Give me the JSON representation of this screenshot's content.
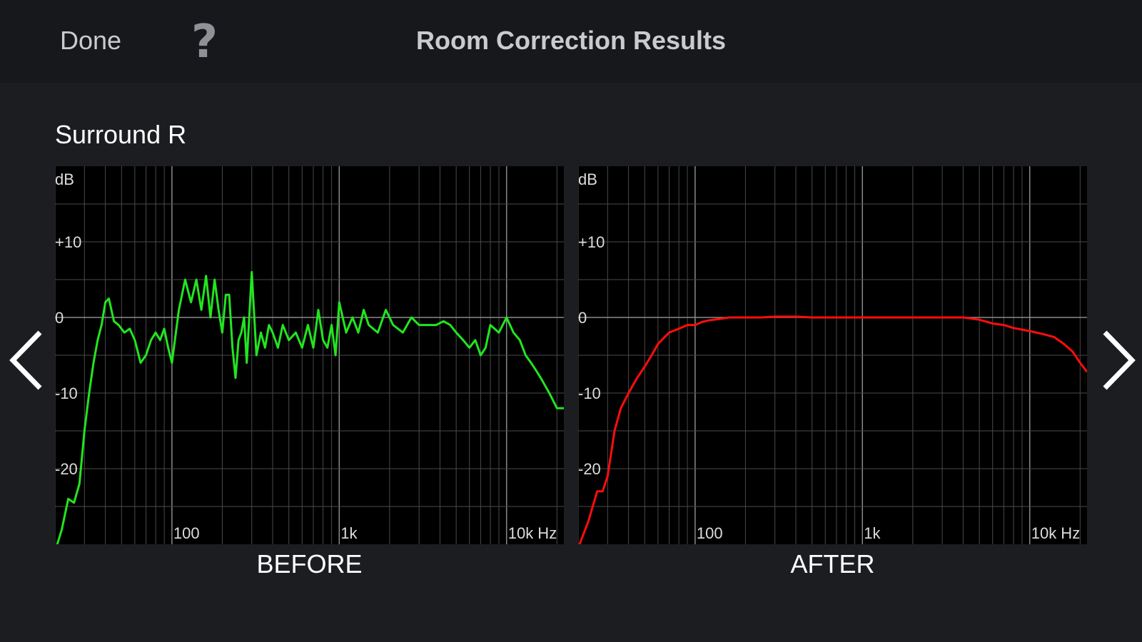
{
  "header": {
    "done_label": "Done",
    "help_label": "?",
    "title": "Room Correction Results"
  },
  "channel_name": "Surround R",
  "nav": {
    "prev_icon": "chevron-left-icon",
    "next_icon": "chevron-right-icon"
  },
  "chart_data": [
    {
      "type": "line",
      "caption": "BEFORE",
      "ylabel": "dB",
      "xscale": "log",
      "xlim": [
        20,
        22000
      ],
      "ylim": [
        -30,
        20
      ],
      "x_ticks": [
        {
          "value": 100,
          "label": "100"
        },
        {
          "value": 1000,
          "label": "1k"
        },
        {
          "value": 10000,
          "label": "10k Hz"
        }
      ],
      "y_ticks": [
        {
          "value": 10,
          "label": "+10"
        },
        {
          "value": 0,
          "label": "0"
        },
        {
          "value": -10,
          "label": "-10"
        },
        {
          "value": -20,
          "label": "-20"
        }
      ],
      "grid": true,
      "color": "#22e51f",
      "series": [
        {
          "x": [
            20,
            22,
            24,
            26,
            28,
            30,
            32,
            34,
            36,
            38,
            40,
            42,
            45,
            48,
            52,
            56,
            60,
            65,
            70,
            75,
            80,
            85,
            90,
            95,
            100,
            110,
            120,
            130,
            140,
            150,
            160,
            170,
            180,
            190,
            200,
            210,
            220,
            230,
            240,
            250,
            260,
            270,
            280,
            300,
            320,
            340,
            360,
            380,
            400,
            430,
            460,
            500,
            550,
            600,
            650,
            700,
            750,
            800,
            850,
            900,
            950,
            1000,
            1100,
            1200,
            1300,
            1400,
            1500,
            1700,
            1900,
            2100,
            2400,
            2700,
            3000,
            3400,
            3800,
            4200,
            4600,
            5000,
            5500,
            6000,
            6500,
            7000,
            7500,
            8000,
            9000,
            10000,
            11000,
            12000,
            13000,
            14000,
            15000,
            16000,
            18000,
            20000,
            22000
          ],
          "y": [
            -31,
            -28,
            -24,
            -24.5,
            -22,
            -15,
            -10,
            -6,
            -3,
            -1,
            2,
            2.5,
            -0.5,
            -1,
            -2,
            -1.5,
            -3,
            -6,
            -5,
            -3,
            -2,
            -3,
            -1.5,
            -4,
            -6,
            1,
            5,
            2,
            5,
            1,
            5.5,
            0,
            5,
            1,
            -2,
            3,
            3,
            -4,
            -8,
            -3,
            -2,
            0,
            -6,
            6,
            -5,
            -2,
            -4,
            -1,
            -2,
            -4,
            -1,
            -3,
            -2,
            -4,
            -1,
            -4,
            1,
            -3,
            -4,
            -1,
            -5,
            2,
            -2,
            0,
            -2,
            1,
            -1,
            -2,
            1,
            -1,
            -2,
            0,
            -1,
            -1,
            -1,
            -0.5,
            -1,
            -2,
            -3,
            -4,
            -3,
            -5,
            -4,
            -1,
            -2,
            0,
            -2,
            -3,
            -5,
            -6,
            -7,
            -8,
            -10,
            -12,
            -12
          ]
        }
      ]
    },
    {
      "type": "line",
      "caption": "AFTER",
      "ylabel": "dB",
      "xscale": "log",
      "xlim": [
        20,
        22000
      ],
      "ylim": [
        -30,
        20
      ],
      "x_ticks": [
        {
          "value": 100,
          "label": "100"
        },
        {
          "value": 1000,
          "label": "1k"
        },
        {
          "value": 10000,
          "label": "10k Hz"
        }
      ],
      "y_ticks": [
        {
          "value": 10,
          "label": "+10"
        },
        {
          "value": 0,
          "label": "0"
        },
        {
          "value": -10,
          "label": "-10"
        },
        {
          "value": -20,
          "label": "-20"
        }
      ],
      "grid": true,
      "color": "#ff0d0d",
      "series": [
        {
          "x": [
            20,
            23,
            26,
            28,
            30,
            33,
            36,
            38,
            40,
            45,
            50,
            55,
            60,
            70,
            80,
            90,
            100,
            110,
            120,
            140,
            160,
            200,
            250,
            300,
            400,
            500,
            700,
            1000,
            1500,
            2000,
            3000,
            4000,
            5000,
            6000,
            7000,
            8000,
            10000,
            12000,
            14000,
            16000,
            18000,
            20000,
            22000
          ],
          "y": [
            -30.5,
            -27,
            -23,
            -23,
            -21,
            -15,
            -12,
            -11,
            -10,
            -8,
            -6.5,
            -5,
            -3.5,
            -2,
            -1.5,
            -1,
            -1,
            -0.6,
            -0.4,
            -0.2,
            0,
            0,
            0,
            0.1,
            0.1,
            0,
            0,
            0,
            0,
            0,
            0,
            0,
            -0.3,
            -0.8,
            -1,
            -1.4,
            -1.8,
            -2.2,
            -2.6,
            -3.5,
            -4.5,
            -6,
            -7.2
          ]
        }
      ]
    }
  ]
}
